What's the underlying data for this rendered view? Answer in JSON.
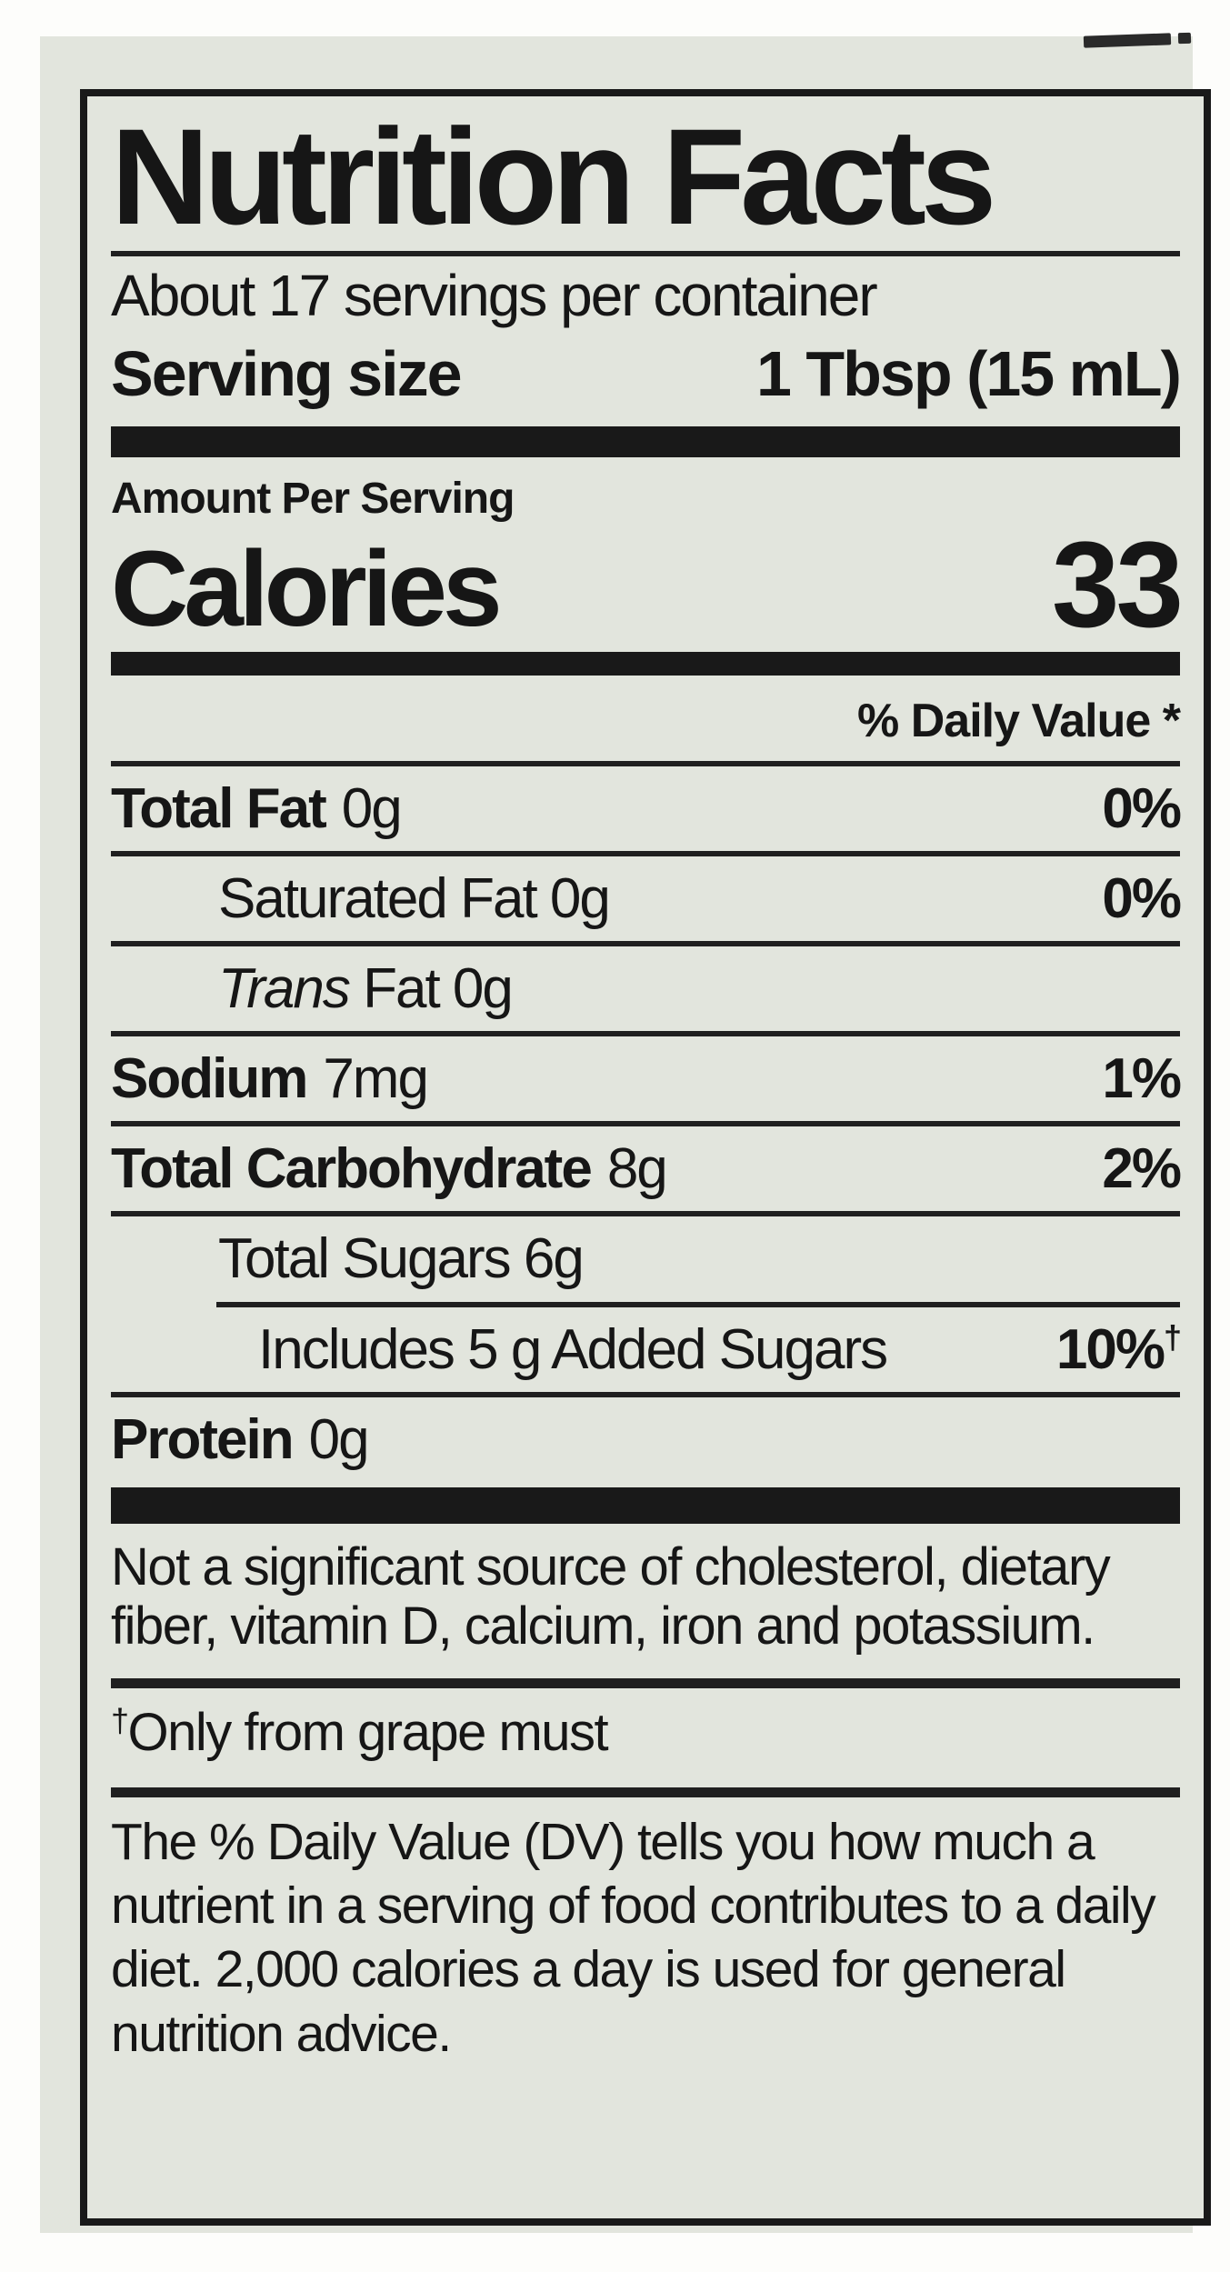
{
  "colors": {
    "label_background": "#e2e5dd",
    "ink": "#191919",
    "page_background": "#fdfdfb"
  },
  "label": {
    "title": "Nutrition Facts",
    "servings_per_container": "About 17 servings per container",
    "serving_size": {
      "label": "Serving size",
      "value": "1 Tbsp (15 mL)"
    },
    "amount_per_serving": "Amount Per Serving",
    "calories": {
      "label": "Calories",
      "value": "33"
    },
    "daily_value_header": "% Daily Value *",
    "nutrients": {
      "total_fat": {
        "name": "Total Fat",
        "amount": "0g",
        "dv": "0%"
      },
      "saturated_fat": {
        "name": "Saturated Fat 0g",
        "dv": "0%"
      },
      "trans_fat": {
        "name_italic": "Trans",
        "name_rest": " Fat 0g"
      },
      "sodium": {
        "name": "Sodium",
        "amount": "7mg",
        "dv": "1%"
      },
      "total_carbohydrate": {
        "name": "Total Carbohydrate",
        "amount": "8g",
        "dv": "2%"
      },
      "total_sugars": {
        "name": "Total Sugars 6g"
      },
      "added_sugars": {
        "text": "Includes 5 g Added Sugars",
        "dv": "10%",
        "dagger": "†"
      },
      "protein": {
        "name": "Protein",
        "amount": "0g"
      }
    },
    "not_significant_note": "Not a significant source of cholesterol, dietary fiber, vitamin D, calcium, iron and potassium.",
    "dagger_note": {
      "symbol": "†",
      "text": "Only from grape must"
    },
    "dv_footnote": "The % Daily Value (DV) tells you how much a nutrient in a serving of food contributes to a daily diet. 2,000 calories a day is used for general nutrition advice."
  }
}
